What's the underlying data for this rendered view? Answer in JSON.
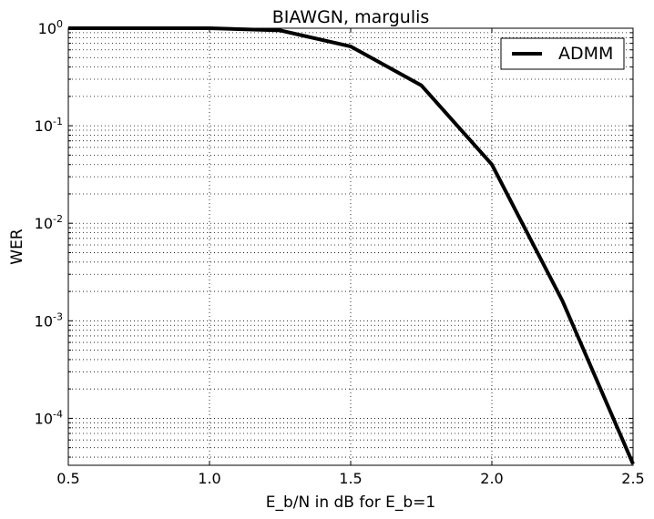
{
  "chart_data": {
    "type": "line",
    "title": "BIAWGN, margulis",
    "xlabel": "E_b/N in dB for E_b=1",
    "ylabel": "WER",
    "xlim": [
      0.5,
      2.5
    ],
    "ylim": [
      3.3e-05,
      1.0
    ],
    "yscale": "log",
    "grid": true,
    "legend_position": "top-right",
    "x_ticks": [
      {
        "value": 0.5,
        "label": "0.5"
      },
      {
        "value": 1.0,
        "label": "1.0"
      },
      {
        "value": 1.5,
        "label": "1.5"
      },
      {
        "value": 2.0,
        "label": "2.0"
      },
      {
        "value": 2.5,
        "label": "2.5"
      }
    ],
    "y_ticks": [
      {
        "value": 1,
        "base": "10",
        "exp": "0"
      },
      {
        "value": 0.1,
        "base": "10",
        "exp": "-1"
      },
      {
        "value": 0.01,
        "base": "10",
        "exp": "-2"
      },
      {
        "value": 0.001,
        "base": "10",
        "exp": "-3"
      },
      {
        "value": 0.0001,
        "base": "10",
        "exp": "-4"
      }
    ],
    "series": [
      {
        "name": "ADMM",
        "color": "#000000",
        "x": [
          0.5,
          0.75,
          1.0,
          1.25,
          1.5,
          1.75,
          2.0,
          2.25,
          2.5
        ],
        "y": [
          1.0,
          1.0,
          1.0,
          0.95,
          0.65,
          0.26,
          0.04,
          0.0016,
          3.4e-05
        ]
      }
    ]
  }
}
